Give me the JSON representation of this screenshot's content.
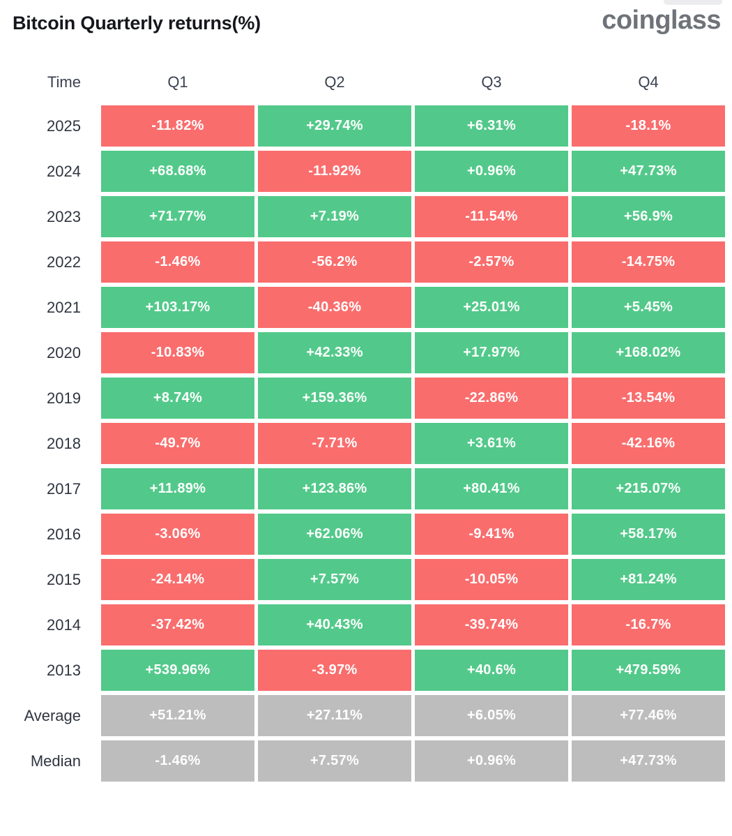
{
  "brand": {
    "logo_text": "coinglass"
  },
  "colors": {
    "positive": "#52c98a",
    "negative": "#fa6d6d",
    "neutral": "#bdbdbd",
    "title_text": "#15171c",
    "label_text": "#2f3540",
    "cell_text": "#ffffff"
  },
  "chart_data": {
    "type": "table",
    "title": "Bitcoin Quarterly returns(%)",
    "columns": [
      "Time",
      "Q1",
      "Q2",
      "Q3",
      "Q4"
    ],
    "value_format": "signed percent",
    "color_rule": "positive=green, negative=red, summary rows=gray",
    "rows": [
      {
        "label": "2025",
        "summary": false,
        "values": [
          -11.82,
          29.74,
          6.31,
          -18.1
        ],
        "display": [
          "-11.82%",
          "+29.74%",
          "+6.31%",
          "-18.1%"
        ]
      },
      {
        "label": "2024",
        "summary": false,
        "values": [
          68.68,
          -11.92,
          0.96,
          47.73
        ],
        "display": [
          "+68.68%",
          "-11.92%",
          "+0.96%",
          "+47.73%"
        ]
      },
      {
        "label": "2023",
        "summary": false,
        "values": [
          71.77,
          7.19,
          -11.54,
          56.9
        ],
        "display": [
          "+71.77%",
          "+7.19%",
          "-11.54%",
          "+56.9%"
        ]
      },
      {
        "label": "2022",
        "summary": false,
        "values": [
          -1.46,
          -56.2,
          -2.57,
          -14.75
        ],
        "display": [
          "-1.46%",
          "-56.2%",
          "-2.57%",
          "-14.75%"
        ]
      },
      {
        "label": "2021",
        "summary": false,
        "values": [
          103.17,
          -40.36,
          25.01,
          5.45
        ],
        "display": [
          "+103.17%",
          "-40.36%",
          "+25.01%",
          "+5.45%"
        ]
      },
      {
        "label": "2020",
        "summary": false,
        "values": [
          -10.83,
          42.33,
          17.97,
          168.02
        ],
        "display": [
          "-10.83%",
          "+42.33%",
          "+17.97%",
          "+168.02%"
        ]
      },
      {
        "label": "2019",
        "summary": false,
        "values": [
          8.74,
          159.36,
          -22.86,
          -13.54
        ],
        "display": [
          "+8.74%",
          "+159.36%",
          "-22.86%",
          "-13.54%"
        ]
      },
      {
        "label": "2018",
        "summary": false,
        "values": [
          -49.7,
          -7.71,
          3.61,
          -42.16
        ],
        "display": [
          "-49.7%",
          "-7.71%",
          "+3.61%",
          "-42.16%"
        ]
      },
      {
        "label": "2017",
        "summary": false,
        "values": [
          11.89,
          123.86,
          80.41,
          215.07
        ],
        "display": [
          "+11.89%",
          "+123.86%",
          "+80.41%",
          "+215.07%"
        ]
      },
      {
        "label": "2016",
        "summary": false,
        "values": [
          -3.06,
          62.06,
          -9.41,
          58.17
        ],
        "display": [
          "-3.06%",
          "+62.06%",
          "-9.41%",
          "+58.17%"
        ]
      },
      {
        "label": "2015",
        "summary": false,
        "values": [
          -24.14,
          7.57,
          -10.05,
          81.24
        ],
        "display": [
          "-24.14%",
          "+7.57%",
          "-10.05%",
          "+81.24%"
        ]
      },
      {
        "label": "2014",
        "summary": false,
        "values": [
          -37.42,
          40.43,
          -39.74,
          -16.7
        ],
        "display": [
          "-37.42%",
          "+40.43%",
          "-39.74%",
          "-16.7%"
        ]
      },
      {
        "label": "2013",
        "summary": false,
        "values": [
          539.96,
          -3.97,
          40.6,
          479.59
        ],
        "display": [
          "+539.96%",
          "-3.97%",
          "+40.6%",
          "+479.59%"
        ]
      },
      {
        "label": "Average",
        "summary": true,
        "values": [
          51.21,
          27.11,
          6.05,
          77.46
        ],
        "display": [
          "+51.21%",
          "+27.11%",
          "+6.05%",
          "+77.46%"
        ]
      },
      {
        "label": "Median",
        "summary": true,
        "values": [
          -1.46,
          7.57,
          0.96,
          47.73
        ],
        "display": [
          "-1.46%",
          "+7.57%",
          "+0.96%",
          "+47.73%"
        ]
      }
    ]
  }
}
